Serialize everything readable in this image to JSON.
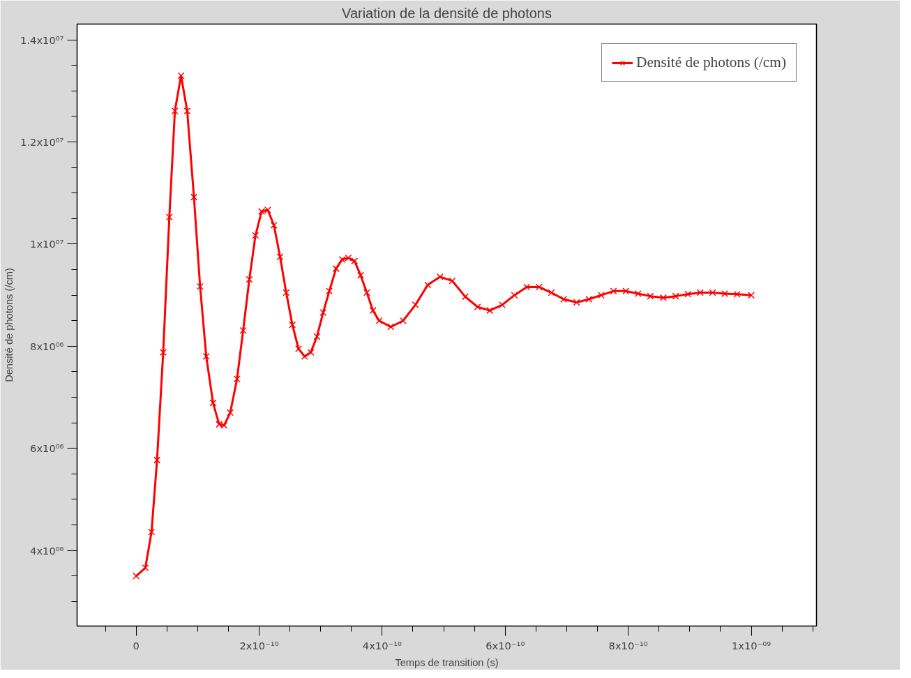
{
  "chart_data": {
    "type": "line",
    "title": "Variation de la densité de photons",
    "xlabel": "Temps de transition (s)",
    "ylabel": "Densité de photons (/cm)",
    "xlim": [
      -9.6e-11,
      1.106e-09
    ],
    "ylim": [
      2520000.0,
      14310000.0
    ],
    "xticks": [
      {
        "value": -5e-11,
        "label": null
      },
      {
        "value": 0,
        "label": "0"
      },
      {
        "value": 5e-11,
        "label": null
      },
      {
        "value": 1e-10,
        "label": null
      },
      {
        "value": 1.5e-10,
        "label": null
      },
      {
        "value": 2e-10,
        "label": "2x10⁻¹⁰"
      },
      {
        "value": 2.5e-10,
        "label": null
      },
      {
        "value": 3e-10,
        "label": null
      },
      {
        "value": 3.5e-10,
        "label": null
      },
      {
        "value": 4e-10,
        "label": "4x10⁻¹⁰"
      },
      {
        "value": 4.5e-10,
        "label": null
      },
      {
        "value": 5e-10,
        "label": null
      },
      {
        "value": 5.5e-10,
        "label": null
      },
      {
        "value": 6e-10,
        "label": "6x10⁻¹⁰"
      },
      {
        "value": 6.5e-10,
        "label": null
      },
      {
        "value": 7e-10,
        "label": null
      },
      {
        "value": 7.5e-10,
        "label": null
      },
      {
        "value": 8e-10,
        "label": "8x10⁻¹⁰"
      },
      {
        "value": 8.5e-10,
        "label": null
      },
      {
        "value": 9e-10,
        "label": null
      },
      {
        "value": 9.5e-10,
        "label": null
      },
      {
        "value": 1e-09,
        "label": "1x10⁻⁰⁹"
      },
      {
        "value": 1.05e-09,
        "label": null
      },
      {
        "value": 1.1e-09,
        "label": null
      }
    ],
    "yticks": [
      {
        "value": 3000000.0,
        "label": null
      },
      {
        "value": 3500000.0,
        "label": null
      },
      {
        "value": 4000000.0,
        "label": "4x10⁰⁶"
      },
      {
        "value": 4500000.0,
        "label": null
      },
      {
        "value": 5000000.0,
        "label": null
      },
      {
        "value": 5500000.0,
        "label": null
      },
      {
        "value": 6000000.0,
        "label": "6x10⁰⁶"
      },
      {
        "value": 6500000.0,
        "label": null
      },
      {
        "value": 7000000.0,
        "label": null
      },
      {
        "value": 7500000.0,
        "label": null
      },
      {
        "value": 8000000.0,
        "label": "8x10⁰⁶"
      },
      {
        "value": 8500000.0,
        "label": null
      },
      {
        "value": 9000000.0,
        "label": null
      },
      {
        "value": 9500000.0,
        "label": null
      },
      {
        "value": 10000000.0,
        "label": "1x10⁰⁷"
      },
      {
        "value": 10500000.0,
        "label": null
      },
      {
        "value": 11000000.0,
        "label": null
      },
      {
        "value": 11500000.0,
        "label": null
      },
      {
        "value": 12000000.0,
        "label": "1.2x10⁰⁷"
      },
      {
        "value": 12500000.0,
        "label": null
      },
      {
        "value": 13000000.0,
        "label": null
      },
      {
        "value": 13500000.0,
        "label": null
      },
      {
        "value": 14000000.0,
        "label": "1.4x10⁰⁷"
      }
    ],
    "grid": false,
    "legend": "top right",
    "marker": "cross",
    "line_style": "solid",
    "series": [
      {
        "name": "Densité de photons (/cm)",
        "color": "#ff0000",
        "x": [
          0,
          1.5e-11,
          2.5e-11,
          3.4e-11,
          4.4e-11,
          5.4e-11,
          6.3e-11,
          7.3e-11,
          8.3e-11,
          9.4e-11,
          1.04e-10,
          1.14e-10,
          1.25e-10,
          1.35e-10,
          1.43e-10,
          1.53e-10,
          1.64e-10,
          1.74e-10,
          1.84e-10,
          1.94e-10,
          2.04e-10,
          2.14e-10,
          2.24e-10,
          2.34e-10,
          2.44e-10,
          2.54e-10,
          2.64e-10,
          2.74e-10,
          2.84e-10,
          2.94e-10,
          3.04e-10,
          3.14e-10,
          3.25e-10,
          3.35e-10,
          3.45e-10,
          3.55e-10,
          3.65e-10,
          3.75e-10,
          3.85e-10,
          3.95e-10,
          4.14e-10,
          4.34e-10,
          4.54e-10,
          4.74e-10,
          4.94e-10,
          5.14e-10,
          5.35e-10,
          5.55e-10,
          5.75e-10,
          5.95e-10,
          6.15e-10,
          6.35e-10,
          6.55e-10,
          6.75e-10,
          6.95e-10,
          7.16e-10,
          7.36e-10,
          7.56e-10,
          7.76e-10,
          7.96e-10,
          8.16e-10,
          8.36e-10,
          8.57e-10,
          8.77e-10,
          8.97e-10,
          9.17e-10,
          9.37e-10,
          9.57e-10,
          9.77e-10,
          1e-09
        ],
        "values": [
          3500000.0,
          3660000.0,
          4360000.0,
          5770000.0,
          7880000.0,
          10530000.0,
          12610000.0,
          13300000.0,
          12610000.0,
          10920000.0,
          9170000.0,
          7800000.0,
          6890000.0,
          6470000.0,
          6450000.0,
          6700000.0,
          7360000.0,
          8310000.0,
          9310000.0,
          10170000.0,
          10640000.0,
          10670000.0,
          10370000.0,
          9750000.0,
          9050000.0,
          8420000.0,
          7950000.0,
          7800000.0,
          7880000.0,
          8190000.0,
          8660000.0,
          9080000.0,
          9520000.0,
          9700000.0,
          9730000.0,
          9670000.0,
          9390000.0,
          9050000.0,
          8700000.0,
          8500000.0,
          8380000.0,
          8500000.0,
          8810000.0,
          9200000.0,
          9360000.0,
          9280000.0,
          8970000.0,
          8770000.0,
          8700000.0,
          8810000.0,
          9000000.0,
          9160000.0,
          9160000.0,
          9050000.0,
          8920000.0,
          8860000.0,
          8920000.0,
          9000000.0,
          9080000.0,
          9080000.0,
          9030000.0,
          8980000.0,
          8950000.0,
          8980000.0,
          9020000.0,
          9050000.0,
          9050000.0,
          9030000.0,
          9020000.0,
          9000000.0
        ]
      }
    ]
  }
}
